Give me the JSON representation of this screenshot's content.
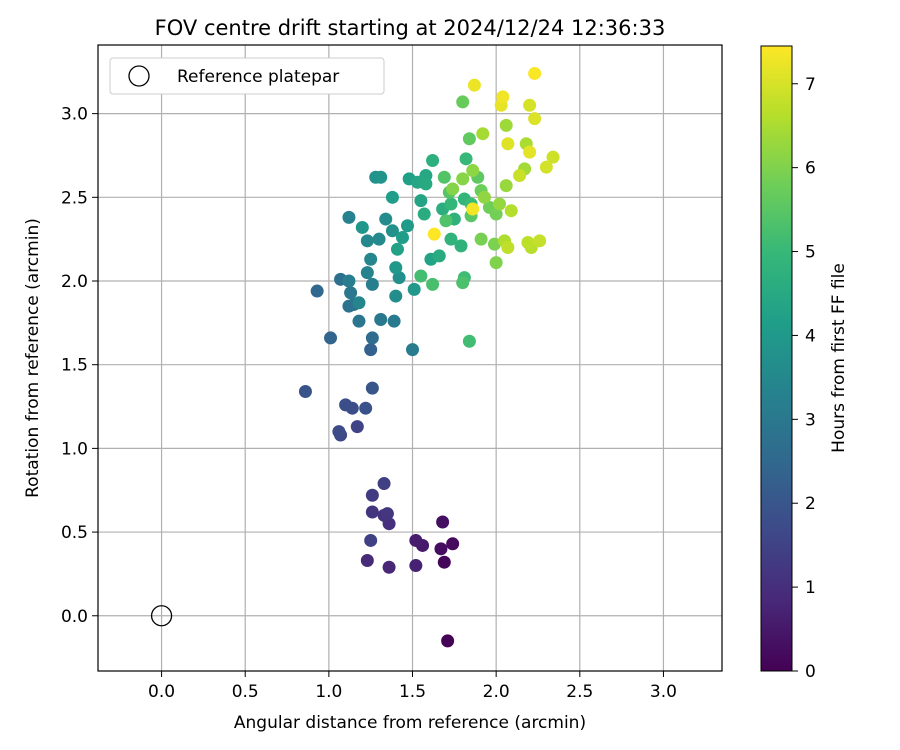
{
  "chart_data": {
    "type": "scatter",
    "title": "FOV centre drift starting at 2024/12/24 12:36:33",
    "xlabel": "Angular distance from reference (arcmin)",
    "ylabel": "Rotation from reference (arcmin)",
    "xlim": [
      -0.38,
      3.35
    ],
    "ylim": [
      -0.33,
      3.41
    ],
    "xticks": [
      "0.0",
      "0.5",
      "1.0",
      "1.5",
      "2.0",
      "2.5",
      "3.0"
    ],
    "yticks": [
      "0.0",
      "0.5",
      "1.0",
      "1.5",
      "2.0",
      "2.5",
      "3.0"
    ],
    "grid": true,
    "legend": {
      "placement": "top-left",
      "label": "Reference platepar"
    },
    "reference_point": {
      "x": 0.0,
      "y": 0.0
    },
    "colorbar": {
      "label": "Hours from first FF file",
      "range": [
        0,
        7.45
      ],
      "ticks": [
        "0",
        "1",
        "2",
        "3",
        "4",
        "5",
        "6",
        "7"
      ],
      "colormap": "viridis"
    },
    "points": [
      [
        1.71,
        -0.15,
        0.05
      ],
      [
        1.69,
        0.32,
        0.1
      ],
      [
        1.74,
        0.43,
        0.2
      ],
      [
        1.67,
        0.4,
        0.25
      ],
      [
        1.68,
        0.56,
        0.3
      ],
      [
        1.56,
        0.42,
        0.5
      ],
      [
        1.52,
        0.45,
        0.6
      ],
      [
        1.52,
        0.3,
        0.7
      ],
      [
        1.36,
        0.29,
        0.8
      ],
      [
        1.23,
        0.33,
        0.9
      ],
      [
        1.36,
        0.55,
        1.0
      ],
      [
        1.33,
        0.6,
        1.1
      ],
      [
        1.26,
        0.62,
        1.15
      ],
      [
        1.35,
        0.61,
        1.2
      ],
      [
        1.26,
        0.72,
        1.3
      ],
      [
        1.33,
        0.79,
        1.4
      ],
      [
        1.25,
        0.45,
        1.45
      ],
      [
        1.17,
        1.13,
        1.5
      ],
      [
        1.07,
        1.08,
        1.6
      ],
      [
        1.06,
        1.1,
        1.7
      ],
      [
        1.14,
        1.24,
        1.75
      ],
      [
        1.1,
        1.26,
        1.8
      ],
      [
        1.22,
        1.24,
        1.9
      ],
      [
        0.86,
        1.34,
        1.95
      ],
      [
        1.26,
        1.36,
        2.0
      ],
      [
        1.25,
        1.59,
        2.3
      ],
      [
        1.01,
        1.66,
        2.4
      ],
      [
        0.93,
        1.94,
        2.5
      ],
      [
        1.26,
        1.66,
        2.6
      ],
      [
        1.15,
        1.86,
        2.7
      ],
      [
        1.07,
        2.01,
        2.75
      ],
      [
        1.12,
        1.85,
        2.8
      ],
      [
        1.18,
        1.76,
        2.9
      ],
      [
        1.13,
        1.93,
        2.95
      ],
      [
        1.31,
        1.77,
        3.0
      ],
      [
        1.39,
        1.76,
        3.05
      ],
      [
        1.5,
        1.59,
        3.1
      ],
      [
        1.12,
        2.0,
        3.15
      ],
      [
        1.26,
        1.98,
        3.2
      ],
      [
        1.12,
        2.38,
        3.3
      ],
      [
        1.23,
        2.05,
        3.35
      ],
      [
        1.18,
        1.87,
        3.4
      ],
      [
        1.25,
        2.13,
        3.45
      ],
      [
        1.23,
        2.24,
        3.5
      ],
      [
        1.3,
        2.25,
        3.55
      ],
      [
        1.34,
        2.37,
        3.6
      ],
      [
        1.4,
        1.91,
        3.65
      ],
      [
        1.42,
        2.02,
        3.7
      ],
      [
        1.38,
        2.3,
        3.75
      ],
      [
        1.28,
        2.62,
        3.8
      ],
      [
        1.31,
        2.62,
        3.85
      ],
      [
        1.2,
        2.32,
        3.9
      ],
      [
        1.51,
        1.95,
        3.95
      ],
      [
        1.4,
        2.08,
        4.0
      ],
      [
        1.47,
        2.33,
        4.05
      ],
      [
        1.44,
        2.26,
        4.1
      ],
      [
        1.38,
        2.5,
        4.15
      ],
      [
        1.48,
        2.61,
        4.2
      ],
      [
        1.41,
        2.19,
        4.25
      ],
      [
        1.61,
        2.13,
        4.3
      ],
      [
        1.55,
        2.48,
        4.35
      ],
      [
        1.53,
        2.59,
        4.4
      ],
      [
        1.58,
        2.63,
        4.45
      ],
      [
        1.58,
        2.58,
        4.5
      ],
      [
        1.66,
        2.15,
        4.55
      ],
      [
        1.57,
        2.4,
        4.6
      ],
      [
        1.68,
        2.43,
        4.65
      ],
      [
        1.62,
        2.72,
        4.7
      ],
      [
        1.75,
        2.37,
        4.75
      ],
      [
        1.79,
        2.21,
        4.8
      ],
      [
        1.73,
        2.25,
        4.85
      ],
      [
        1.81,
        2.49,
        4.9
      ],
      [
        1.73,
        2.46,
        4.95
      ],
      [
        1.82,
        2.73,
        5.0
      ],
      [
        1.85,
        2.46,
        5.05
      ],
      [
        1.81,
        2.02,
        5.1
      ],
      [
        1.84,
        1.64,
        5.15
      ],
      [
        1.55,
        2.03,
        5.2
      ],
      [
        1.62,
        1.98,
        5.25
      ],
      [
        1.8,
        1.99,
        5.3
      ],
      [
        1.7,
        2.36,
        5.35
      ],
      [
        1.69,
        2.62,
        5.4
      ],
      [
        1.72,
        2.53,
        5.45
      ],
      [
        1.85,
        2.39,
        5.5
      ],
      [
        1.89,
        2.62,
        5.55
      ],
      [
        1.84,
        2.85,
        5.6
      ],
      [
        1.8,
        3.07,
        5.7
      ],
      [
        1.91,
        2.54,
        5.75
      ],
      [
        1.96,
        2.44,
        5.8
      ],
      [
        2.0,
        2.4,
        5.85
      ],
      [
        1.91,
        2.25,
        5.9
      ],
      [
        1.99,
        2.22,
        5.95
      ],
      [
        2.0,
        2.11,
        6.0
      ],
      [
        1.74,
        2.55,
        6.05
      ],
      [
        1.8,
        2.61,
        6.1
      ],
      [
        1.86,
        2.66,
        6.15
      ],
      [
        1.93,
        2.5,
        6.2
      ],
      [
        2.02,
        2.46,
        6.25
      ],
      [
        2.06,
        2.57,
        6.3
      ],
      [
        2.06,
        2.93,
        6.35
      ],
      [
        2.17,
        2.67,
        6.4
      ],
      [
        1.92,
        2.88,
        6.45
      ],
      [
        2.18,
        2.82,
        6.5
      ],
      [
        2.05,
        2.24,
        6.55
      ],
      [
        2.09,
        2.42,
        6.6
      ],
      [
        2.21,
        2.2,
        6.65
      ],
      [
        2.19,
        2.23,
        6.7
      ],
      [
        2.07,
        2.2,
        6.75
      ],
      [
        2.26,
        2.24,
        6.8
      ],
      [
        2.14,
        2.63,
        6.85
      ],
      [
        2.34,
        2.74,
        6.9
      ],
      [
        2.3,
        2.68,
        6.95
      ],
      [
        2.2,
        3.05,
        7.0
      ],
      [
        2.23,
        2.97,
        7.05
      ],
      [
        2.07,
        2.82,
        7.1
      ],
      [
        2.2,
        2.77,
        7.15
      ],
      [
        2.03,
        3.05,
        7.2
      ],
      [
        1.87,
        3.17,
        7.25
      ],
      [
        2.04,
        3.1,
        7.3
      ],
      [
        2.23,
        3.24,
        7.4
      ],
      [
        1.63,
        2.28,
        7.45
      ],
      [
        1.86,
        2.43,
        7.35
      ]
    ]
  }
}
